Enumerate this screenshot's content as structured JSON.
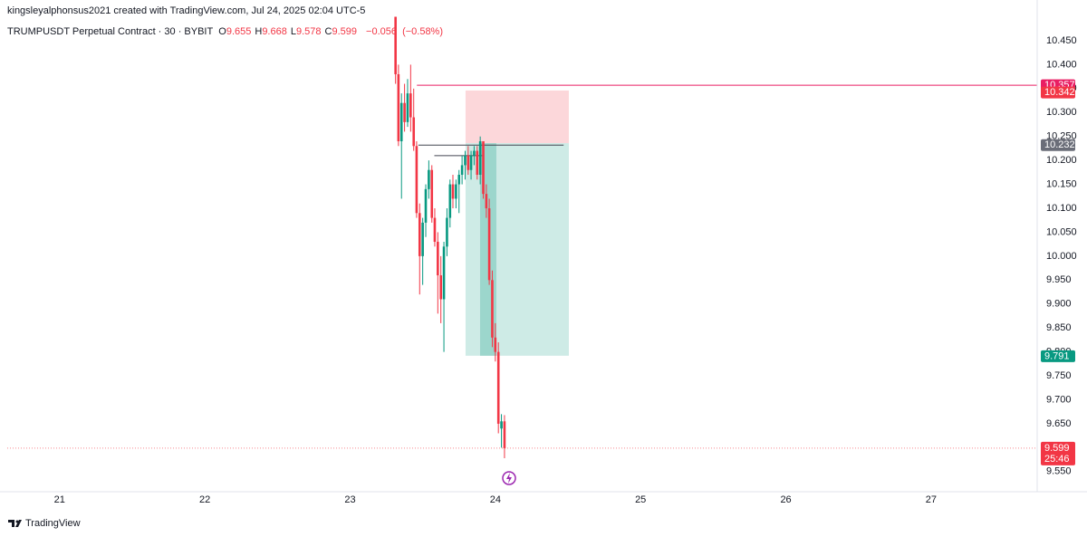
{
  "header": {
    "attribution": "kingsleyalphonsus2021 created with TradingView.com, Jul 24, 2025 02:04 UTC-5",
    "symbol": "TRUMPUSDT Perpetual Contract · 30 · BYBIT",
    "ohlc": [
      {
        "label": "O",
        "value": 9.655
      },
      {
        "label": "H",
        "value": 9.668
      },
      {
        "label": "L",
        "value": 9.578
      },
      {
        "label": "C",
        "value": 9.599
      }
    ],
    "change": {
      "value": -0.056,
      "label": "−0.056"
    },
    "change_pct": {
      "value": -0.58,
      "label": "(−0.58%)"
    }
  },
  "chart_data": {
    "type": "candlestick",
    "up_color": "#089981",
    "down_color": "#f23645",
    "grid": false,
    "xlim": [
      20.64,
      27.73
    ],
    "ylim": [
      9.508,
      10.501
    ],
    "xticks": [
      21,
      22,
      23,
      24,
      25,
      26,
      27
    ],
    "yticks": [
      {
        "value": 10.45,
        "label": "10.450"
      },
      {
        "value": 10.4,
        "label": "10.400"
      },
      {
        "value": 10.35,
        "label": "10.350"
      },
      {
        "value": 10.3,
        "label": "10.300"
      },
      {
        "value": 10.25,
        "label": "10.250"
      },
      {
        "value": 10.2,
        "label": "10.200"
      },
      {
        "value": 10.15,
        "label": "10.150"
      },
      {
        "value": 10.1,
        "label": "10.100"
      },
      {
        "value": 10.05,
        "label": "10.050"
      },
      {
        "value": 10.0,
        "label": "10.000"
      },
      {
        "value": 9.95,
        "label": "9.950"
      },
      {
        "value": 9.9,
        "label": "9.900"
      },
      {
        "value": 9.85,
        "label": "9.850"
      },
      {
        "value": 9.8,
        "label": "9.800"
      },
      {
        "value": 9.75,
        "label": "9.750"
      },
      {
        "value": 9.7,
        "label": "9.700"
      },
      {
        "value": 9.65,
        "label": "9.650"
      },
      {
        "value": 9.6,
        "label": "9.600"
      },
      {
        "value": 9.55,
        "label": "9.550"
      }
    ],
    "x": [
      23.313,
      23.333,
      23.354,
      23.375,
      23.396,
      23.417,
      23.438,
      23.458,
      23.479,
      23.5,
      23.521,
      23.542,
      23.563,
      23.583,
      23.604,
      23.625,
      23.646,
      23.667,
      23.688,
      23.708,
      23.729,
      23.75,
      23.771,
      23.792,
      23.813,
      23.833,
      23.854,
      23.875,
      23.896,
      23.917,
      23.938,
      23.958,
      23.979,
      24.0,
      24.021,
      24.042,
      24.063
    ],
    "open": [
      10.5,
      10.38,
      10.24,
      10.32,
      10.28,
      10.34,
      10.29,
      10.23,
      10.09,
      10.0,
      10.07,
      10.14,
      10.18,
      10.08,
      10.03,
      9.96,
      9.91,
      10.02,
      10.08,
      10.15,
      10.12,
      10.15,
      10.17,
      10.19,
      10.21,
      10.18,
      10.21,
      10.22,
      10.17,
      10.24,
      10.13,
      10.1,
      9.95,
      9.83,
      9.8,
      9.64,
      9.655
    ],
    "high": [
      10.5,
      10.4,
      10.34,
      10.36,
      10.37,
      10.4,
      10.35,
      10.24,
      10.11,
      10.08,
      10.15,
      10.2,
      10.19,
      10.1,
      10.05,
      10.0,
      10.03,
      10.1,
      10.16,
      10.17,
      10.16,
      10.18,
      10.21,
      10.22,
      10.23,
      10.22,
      10.23,
      10.23,
      10.25,
      10.24,
      10.15,
      10.12,
      9.97,
      9.86,
      9.82,
      9.67,
      9.668
    ],
    "low": [
      10.36,
      10.23,
      10.12,
      10.26,
      10.27,
      10.26,
      10.22,
      10.08,
      9.92,
      9.94,
      10.04,
      10.12,
      10.07,
      10.02,
      9.88,
      9.86,
      9.8,
      10.0,
      10.06,
      10.1,
      10.1,
      10.09,
      10.15,
      10.16,
      10.17,
      10.16,
      10.19,
      10.16,
      10.15,
      10.12,
      10.08,
      9.94,
      9.81,
      9.78,
      9.63,
      9.6,
      9.578
    ],
    "close": [
      10.38,
      10.24,
      10.32,
      10.28,
      10.34,
      10.29,
      10.23,
      10.09,
      10.0,
      10.07,
      10.14,
      10.18,
      10.08,
      10.03,
      9.96,
      9.91,
      10.02,
      10.08,
      10.15,
      10.12,
      10.15,
      10.17,
      10.19,
      10.21,
      10.18,
      10.21,
      10.22,
      10.17,
      10.24,
      10.13,
      10.1,
      9.95,
      9.83,
      9.8,
      9.65,
      9.655,
      9.599
    ],
    "position": {
      "start": 23.795,
      "end": 24.506,
      "stop": 10.346,
      "entry": 10.236,
      "target": 9.792,
      "active": [
        23.895,
        24.007
      ]
    },
    "lines": [
      {
        "value": 10.357,
        "x0": 23.46,
        "x1": 27.73,
        "color": "#e91e63"
      },
      {
        "value": 10.232,
        "x0": 23.47,
        "x1": 24.47,
        "color": "#434651"
      },
      {
        "value": 10.21,
        "x0": 23.58,
        "x1": 23.91,
        "color": "#434651"
      }
    ],
    "price_tags": [
      {
        "value": 10.357,
        "color": "#e91e63"
      },
      {
        "value": 10.342,
        "color": "#f23645"
      },
      {
        "value": 10.232,
        "color": "#6a6d78"
      },
      {
        "value": 9.791,
        "color": "#089981"
      }
    ],
    "last_price": {
      "value": 9.599,
      "countdown": "25:46",
      "color": "#f23645"
    }
  },
  "footer": {
    "brand": "TradingView"
  }
}
